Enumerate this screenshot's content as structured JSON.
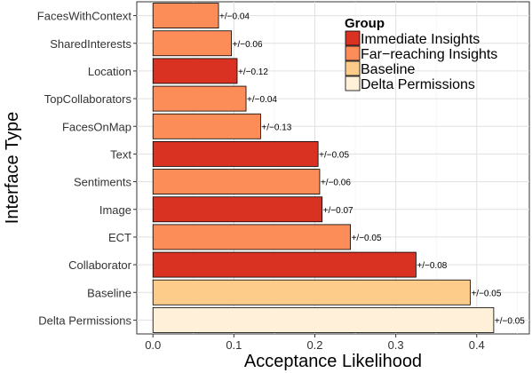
{
  "chart_data": {
    "type": "bar",
    "orientation": "horizontal",
    "xlabel": "Acceptance Likelihood",
    "ylabel": "Interface Type",
    "xlim": [
      -0.02,
      0.465
    ],
    "xticks": [
      0.0,
      0.1,
      0.2,
      0.3,
      0.4
    ],
    "xtick_labels": [
      "0.0",
      "0.1",
      "0.2",
      "0.3",
      "0.4"
    ],
    "grid": true,
    "legend": {
      "title": "Group",
      "placement": "top-right",
      "entries": [
        {
          "label": "Immediate Insights",
          "color": "#d93223"
        },
        {
          "label": "Far−reaching Insights",
          "color": "#fc8d59"
        },
        {
          "label": "Baseline",
          "color": "#fdcc8a"
        },
        {
          "label": "Delta Permissions",
          "color": "#fef0d9"
        }
      ]
    },
    "bars": [
      {
        "category": "FacesWithContext",
        "value": 0.081,
        "group": "Far−reaching Insights",
        "error_label": "+/−0.04"
      },
      {
        "category": "SharedInterests",
        "value": 0.097,
        "group": "Far−reaching Insights",
        "error_label": "+/−0.06"
      },
      {
        "category": "Location",
        "value": 0.104,
        "group": "Immediate Insights",
        "error_label": "+/−0.12"
      },
      {
        "category": "TopCollaborators",
        "value": 0.115,
        "group": "Far−reaching Insights",
        "error_label": "+/−0.04"
      },
      {
        "category": "FacesOnMap",
        "value": 0.133,
        "group": "Far−reaching Insights",
        "error_label": "+/−0.13"
      },
      {
        "category": "Text",
        "value": 0.204,
        "group": "Immediate Insights",
        "error_label": "+/−0.05"
      },
      {
        "category": "Sentiments",
        "value": 0.206,
        "group": "Far−reaching Insights",
        "error_label": "+/−0.06"
      },
      {
        "category": "Image",
        "value": 0.209,
        "group": "Immediate Insights",
        "error_label": "+/−0.07"
      },
      {
        "category": "ECT",
        "value": 0.244,
        "group": "Far−reaching Insights",
        "error_label": "+/−0.05"
      },
      {
        "category": "Collaborator",
        "value": 0.325,
        "group": "Immediate Insights",
        "error_label": "+/−0.08"
      },
      {
        "category": "Baseline",
        "value": 0.392,
        "group": "Baseline",
        "error_label": "+/−0.05"
      },
      {
        "category": "Delta Permissions",
        "value": 0.421,
        "group": "Delta Permissions",
        "error_label": "+/−0.05"
      }
    ]
  }
}
